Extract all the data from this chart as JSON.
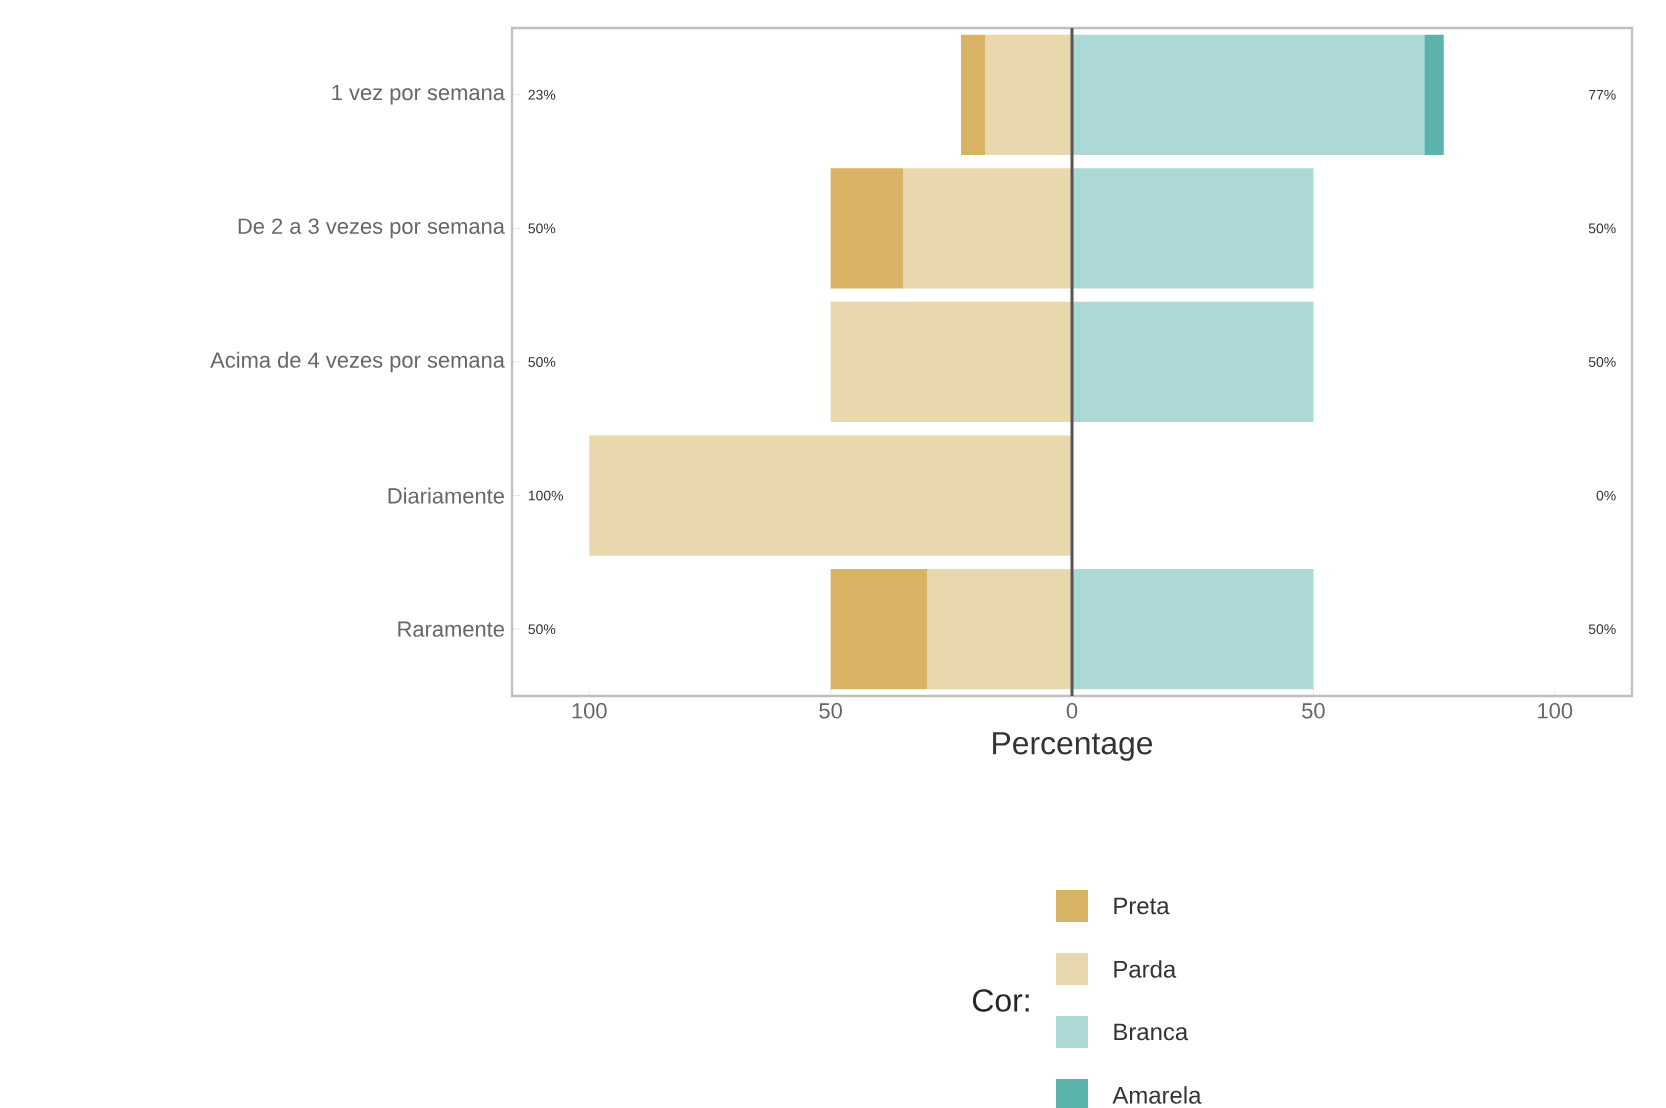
{
  "chart_data": {
    "type": "bar",
    "orientation": "horizontal",
    "stacked": true,
    "xlabel": "Percentage",
    "legend_title": "Cor:",
    "legend": "bottom",
    "categories": [
      "1 vez por semana",
      "De 2 a 3 vezes por semana",
      "Acima de 4 vezes por semana",
      "Diariamente",
      "Raramente"
    ],
    "series": [
      {
        "name": "Preta",
        "color": "#d8b365",
        "values": [
          -5,
          -15,
          0,
          0,
          -20
        ]
      },
      {
        "name": "Parda",
        "color": "#e9d8ae",
        "values": [
          -18,
          -35,
          -50,
          -100,
          -30
        ]
      },
      {
        "name": "Branca",
        "color": "#acd9d5",
        "values": [
          73,
          50,
          50,
          0,
          50
        ]
      },
      {
        "name": "Amarela",
        "color": "#5ab4ac",
        "values": [
          4,
          0,
          0,
          0,
          0
        ]
      }
    ],
    "xlim": [
      -116,
      116
    ],
    "xticks": [
      {
        "value": -100,
        "label": "100"
      },
      {
        "value": -50,
        "label": "50"
      },
      0,
      50,
      100
    ],
    "ref_lines": [
      {
        "axis": "x",
        "value": 0,
        "color": "#555555"
      }
    ],
    "annotations": [
      "23%",
      "77%",
      "50%",
      "50%",
      "50%",
      "50%",
      "100%",
      "0%",
      "50%",
      "50%"
    ]
  }
}
